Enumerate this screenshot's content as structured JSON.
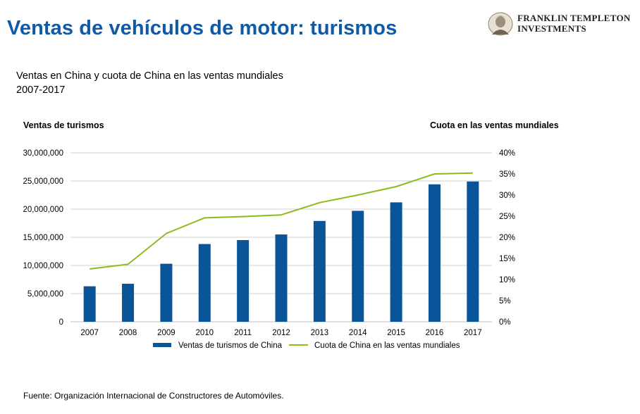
{
  "header": {
    "title": "Ventas de vehículos de motor: turismos",
    "logo_line1": "FRANKLIN TEMPLETON",
    "logo_line2": "INVESTMENTS"
  },
  "subtitle": {
    "line1": "Ventas en China y cuota de China en las ventas mundiales",
    "line2": "2007-2017"
  },
  "footer": {
    "source": "Fuente: Organización Internacional de Constructores de Automóviles."
  },
  "colors": {
    "title": "#0f5aa6",
    "bar": "#0a5499",
    "line": "#8dbb1c",
    "grid": "#d0d0d0"
  },
  "chart_data": {
    "type": "bar+line",
    "categories": [
      "2007",
      "2008",
      "2009",
      "2010",
      "2011",
      "2012",
      "2013",
      "2014",
      "2015",
      "2016",
      "2017"
    ],
    "ylabel_left": "Ventas de turismos",
    "ylabel_right": "Cuota en las ventas mundiales",
    "ylim_left": [
      0,
      30000000
    ],
    "ylim_right": [
      0,
      40
    ],
    "yticks_left": [
      "30,000,000",
      "25,000,000",
      "20,000,000",
      "15,000,000",
      "10,000,000",
      "5,000,000",
      "0"
    ],
    "yticks_right": [
      "40%",
      "35%",
      "30%",
      "25%",
      "20%",
      "15%",
      "10%",
      "5%",
      "0%"
    ],
    "grid": true,
    "legend_position": "bottom",
    "series": [
      {
        "name": "Ventas de turismos de China",
        "kind": "bar",
        "axis": "left",
        "values": [
          6300000,
          6750000,
          10300000,
          13800000,
          14500000,
          15500000,
          17900000,
          19700000,
          21200000,
          24400000,
          24900000
        ]
      },
      {
        "name": "Cuota de China en las ventas mundiales",
        "kind": "line",
        "axis": "right",
        "values": [
          12.5,
          13.6,
          20.9,
          24.6,
          24.9,
          25.3,
          28.2,
          30.0,
          32.0,
          35.0,
          35.2
        ]
      }
    ]
  }
}
